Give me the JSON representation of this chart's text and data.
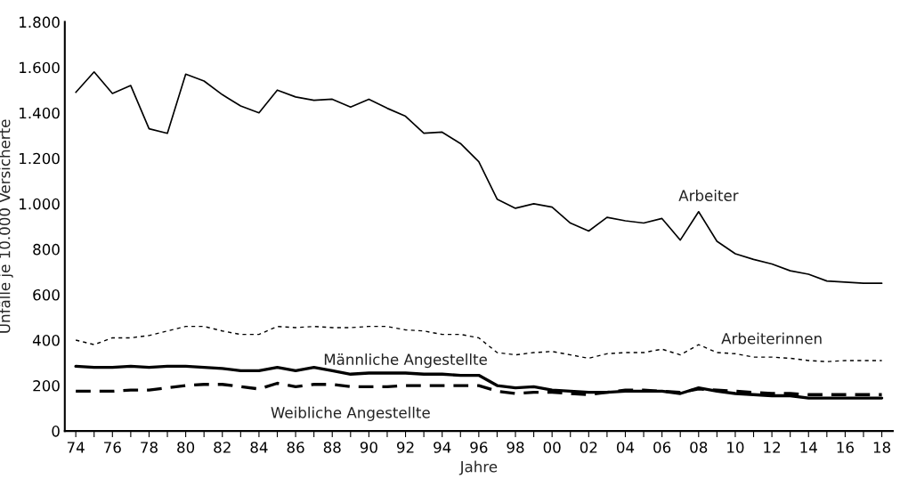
{
  "chart_data": {
    "type": "line",
    "xlabel": "Jahre",
    "ylabel": "Unfälle je 10.000 Versicherte",
    "categories": [
      "74",
      null,
      "76",
      null,
      "78",
      null,
      "80",
      null,
      "82",
      null,
      "84",
      null,
      "86",
      null,
      "88",
      null,
      "90",
      null,
      "92",
      null,
      "94",
      null,
      "96",
      null,
      "98",
      null,
      "00",
      null,
      "02",
      null,
      "04",
      null,
      "06",
      null,
      "08",
      null,
      "10",
      null,
      "12",
      null,
      "14",
      null,
      "16",
      null,
      "18"
    ],
    "series": [
      {
        "name": "Arbeiter",
        "color": "#000000",
        "line_style": "solid",
        "values": [
          1490,
          1580,
          1485,
          1520,
          1330,
          1310,
          1570,
          1540,
          1480,
          1430,
          1400,
          1500,
          1470,
          1455,
          1460,
          1425,
          1460,
          1420,
          1385,
          1310,
          1315,
          1265,
          1185,
          1020,
          980,
          1000,
          985,
          915,
          880,
          940,
          925,
          915,
          935,
          840,
          965,
          835,
          780,
          755,
          735,
          705,
          690,
          660,
          655,
          650,
          650
        ]
      },
      {
        "name": "Arbeiterinnen",
        "color": "#000000",
        "line_style": "dotted",
        "values": [
          400,
          380,
          410,
          410,
          420,
          440,
          460,
          460,
          440,
          425,
          425,
          460,
          455,
          460,
          455,
          455,
          460,
          460,
          445,
          440,
          425,
          425,
          410,
          345,
          335,
          345,
          350,
          335,
          320,
          340,
          345,
          345,
          360,
          335,
          380,
          345,
          340,
          325,
          325,
          320,
          310,
          305,
          310,
          310,
          310
        ]
      },
      {
        "name": "Männliche Angestellte",
        "color": "#000000",
        "line_style": "solid",
        "values": [
          285,
          280,
          280,
          285,
          280,
          285,
          285,
          280,
          275,
          265,
          265,
          280,
          265,
          280,
          265,
          250,
          255,
          255,
          255,
          250,
          250,
          245,
          245,
          200,
          190,
          195,
          180,
          175,
          170,
          170,
          175,
          175,
          175,
          165,
          190,
          175,
          165,
          160,
          155,
          155,
          145,
          145,
          145,
          145,
          145
        ]
      },
      {
        "name": "Weibliche Angestellte",
        "color": "#000000",
        "line_style": "dashed",
        "values": [
          175,
          175,
          175,
          180,
          180,
          190,
          200,
          205,
          205,
          195,
          185,
          210,
          195,
          205,
          205,
          195,
          195,
          195,
          200,
          200,
          200,
          200,
          200,
          175,
          165,
          170,
          170,
          165,
          160,
          170,
          180,
          180,
          175,
          170,
          185,
          180,
          175,
          170,
          165,
          165,
          160,
          160,
          160,
          160,
          160
        ]
      }
    ],
    "ylim": [
      0,
      1800
    ],
    "yticks": [
      0,
      {
        "value": 200,
        "label": "200"
      },
      {
        "value": 400,
        "label": "400"
      },
      {
        "value": 600,
        "label": "600"
      },
      {
        "value": 800,
        "label": "800"
      },
      {
        "value": 1000,
        "label": "1.000"
      },
      {
        "value": 1200,
        "label": "1.200"
      },
      {
        "value": 1400,
        "label": "1.400"
      },
      {
        "value": 1600,
        "label": "1.600"
      },
      {
        "value": 1800,
        "label": "1.800"
      }
    ],
    "grid": false,
    "legend": false,
    "marker": "none"
  }
}
